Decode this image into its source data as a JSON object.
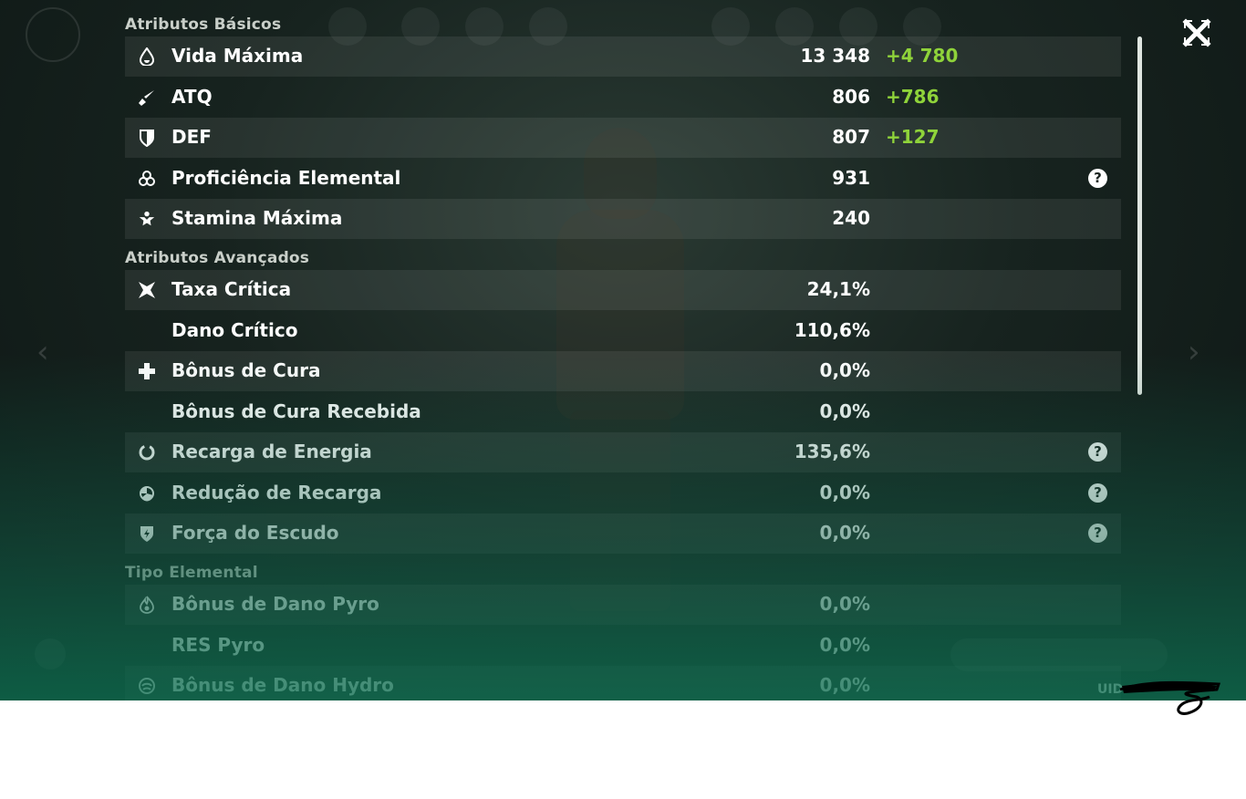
{
  "sections": {
    "basic": "Atributos Básicos",
    "advanced": "Atributos Avançados",
    "elemental": "Tipo Elemental"
  },
  "help_glyph": "?",
  "basic_stats": [
    {
      "icon": "hp-drop-icon",
      "label": "Vida Máxima",
      "value": "13 348",
      "bonus": "+4 780"
    },
    {
      "icon": "atk-sword-icon",
      "label": "ATQ",
      "value": "806",
      "bonus": "+786"
    },
    {
      "icon": "def-shield-icon",
      "label": "DEF",
      "value": "807",
      "bonus": "+127"
    },
    {
      "icon": "elemental-mastery-icon",
      "label": "Proficiência Elemental",
      "value": "931",
      "help": true
    },
    {
      "icon": "stamina-icon",
      "label": "Stamina Máxima",
      "value": "240"
    }
  ],
  "advanced_stats": [
    {
      "icon": "crit-rate-icon",
      "label": "Taxa Crítica",
      "value": "24,1%"
    },
    {
      "icon": "",
      "label": "Dano Crítico",
      "value": "110,6%"
    },
    {
      "icon": "healing-cross-icon",
      "label": "Bônus de Cura",
      "value": "0,0%"
    },
    {
      "icon": "",
      "label": "Bônus de Cura Recebida",
      "value": "0,0%"
    },
    {
      "icon": "energy-recharge-icon",
      "label": "Recarga de Energia",
      "value": "135,6%",
      "help": true
    },
    {
      "icon": "cd-reduction-icon",
      "label": "Redução de Recarga",
      "value": "0,0%",
      "help": true
    },
    {
      "icon": "shield-strength-icon",
      "label": "Força do Escudo",
      "value": "0,0%",
      "help": true
    }
  ],
  "elemental_stats": [
    {
      "icon": "pyro-icon",
      "label": "Bônus de Dano Pyro",
      "value": "0,0%"
    },
    {
      "icon": "",
      "label": "RES Pyro",
      "value": "0,0%"
    },
    {
      "icon": "hydro-icon",
      "label": "Bônus de Dano Hydro",
      "value": "0,0%"
    }
  ],
  "uid_label": "UID",
  "colors": {
    "bonus": "#8fd33a",
    "text": "#ffffff",
    "section": "#c9cfc9"
  }
}
